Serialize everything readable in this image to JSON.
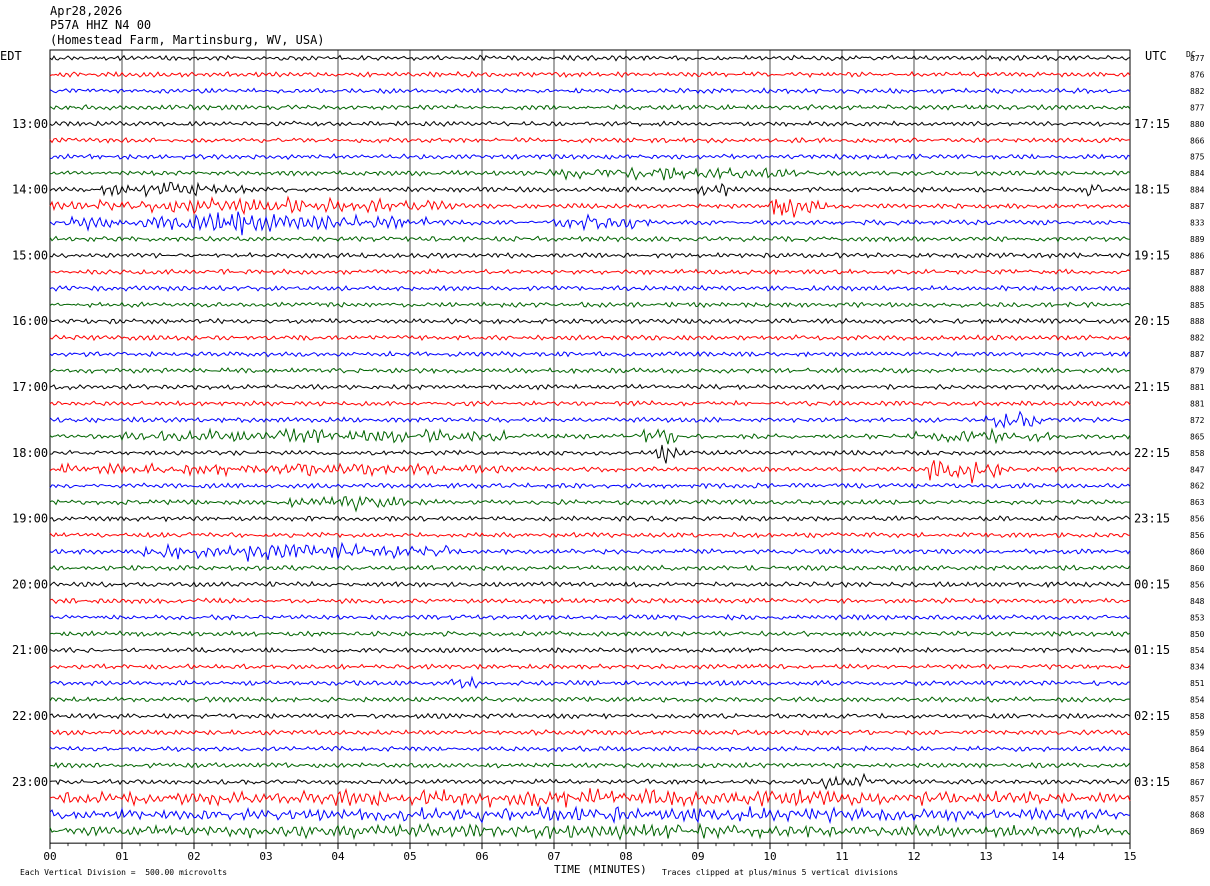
{
  "header": {
    "date": "Apr28,2026",
    "station": "P57A HHZ N4 00",
    "location": "(Homestead Farm, Martinsburg, WV, USA)"
  },
  "left_axis_label": "EDT",
  "right_axis_label": "UTC",
  "dc_label": "DC",
  "x_axis_title": "TIME (MINUTES)",
  "footer": {
    "scale_note": "Each Vertical Division =  500.00 microvolts",
    "clip_note": "Traces clipped at plus/minus 5 vertical divisions"
  },
  "colors": {
    "trace_cycle": [
      "#000000",
      "#ff0000",
      "#0000ff",
      "#006400"
    ],
    "grid": "#000000",
    "background": "#ffffff"
  },
  "chart_data": {
    "type": "line",
    "description_of_type": "helicorder seismogram",
    "traces_per_hour": 4,
    "minutes_per_trace": 15,
    "x_ticks": [
      "00",
      "01",
      "02",
      "03",
      "04",
      "05",
      "06",
      "07",
      "08",
      "09",
      "10",
      "11",
      "12",
      "13",
      "14",
      "15"
    ],
    "edt_hour_labels": [
      "13:00",
      "14:00",
      "15:00",
      "16:00",
      "17:00",
      "18:00",
      "19:00",
      "20:00",
      "21:00",
      "22:00",
      "23:00"
    ],
    "utc_hour_labels": [
      "17:15",
      "18:15",
      "19:15",
      "20:15",
      "21:15",
      "22:15",
      "23:15",
      "00:15",
      "01:15",
      "02:15",
      "03:15"
    ],
    "dc_offsets": [
      877,
      876,
      882,
      877,
      880,
      866,
      875,
      884,
      884,
      887,
      833,
      889,
      886,
      887,
      888,
      885,
      888,
      882,
      887,
      879,
      881,
      881,
      872,
      865,
      858,
      847,
      862,
      863,
      856,
      856,
      860,
      860,
      856,
      848,
      853,
      850,
      854,
      834,
      851,
      854,
      858,
      859,
      864,
      858,
      867,
      857,
      868,
      869
    ],
    "trace_activity": [
      {
        "trace": 0,
        "bursts": []
      },
      {
        "trace": 7,
        "bursts": [
          {
            "start_min": 6.9,
            "end_min": 10.4,
            "amp": 1.3
          }
        ]
      },
      {
        "trace": 8,
        "bursts": [
          {
            "start_min": 0.7,
            "end_min": 2.7,
            "amp": 1.4
          },
          {
            "start_min": 9.0,
            "end_min": 9.4,
            "amp": 1.6
          },
          {
            "start_min": 14.4,
            "end_min": 14.6,
            "amp": 2.0
          }
        ]
      },
      {
        "trace": 9,
        "bursts": [
          {
            "start_min": 0.0,
            "end_min": 5.6,
            "amp": 1.6
          },
          {
            "start_min": 9.9,
            "end_min": 10.8,
            "amp": 2.6
          }
        ]
      },
      {
        "trace": 10,
        "bursts": [
          {
            "start_min": 0.2,
            "end_min": 5.3,
            "amp": 1.8
          },
          {
            "start_min": 7.0,
            "end_min": 8.4,
            "amp": 1.6
          }
        ]
      },
      {
        "trace": 22,
        "bursts": [
          {
            "start_min": 13.0,
            "end_min": 13.8,
            "amp": 2.2
          }
        ]
      },
      {
        "trace": 23,
        "bursts": [
          {
            "start_min": 1.0,
            "end_min": 6.5,
            "amp": 1.3
          },
          {
            "start_min": 8.2,
            "end_min": 8.7,
            "amp": 2.8
          },
          {
            "start_min": 12.0,
            "end_min": 13.9,
            "amp": 1.4
          }
        ]
      },
      {
        "trace": 24,
        "bursts": [
          {
            "start_min": 8.4,
            "end_min": 8.7,
            "amp": 2.4
          }
        ]
      },
      {
        "trace": 25,
        "bursts": [
          {
            "start_min": 0.0,
            "end_min": 6.3,
            "amp": 1.2
          },
          {
            "start_min": 12.2,
            "end_min": 13.2,
            "amp": 3.5
          }
        ]
      },
      {
        "trace": 27,
        "bursts": [
          {
            "start_min": 3.2,
            "end_min": 5.2,
            "amp": 1.3
          }
        ]
      },
      {
        "trace": 30,
        "bursts": [
          {
            "start_min": 1.2,
            "end_min": 5.6,
            "amp": 1.7
          }
        ]
      },
      {
        "trace": 38,
        "bursts": [
          {
            "start_min": 5.5,
            "end_min": 6.0,
            "amp": 1.3
          }
        ]
      },
      {
        "trace": 44,
        "bursts": [
          {
            "start_min": 10.5,
            "end_min": 11.6,
            "amp": 1.2
          }
        ]
      },
      {
        "trace": 45,
        "bursts": [
          {
            "start_min": 0.0,
            "end_min": 15.0,
            "amp": 1.6
          }
        ]
      },
      {
        "trace": 46,
        "bursts": [
          {
            "start_min": 0.0,
            "end_min": 15.0,
            "amp": 1.3
          }
        ]
      },
      {
        "trace": 47,
        "bursts": [
          {
            "start_min": 0.0,
            "end_min": 15.0,
            "amp": 1.2
          }
        ]
      }
    ]
  }
}
